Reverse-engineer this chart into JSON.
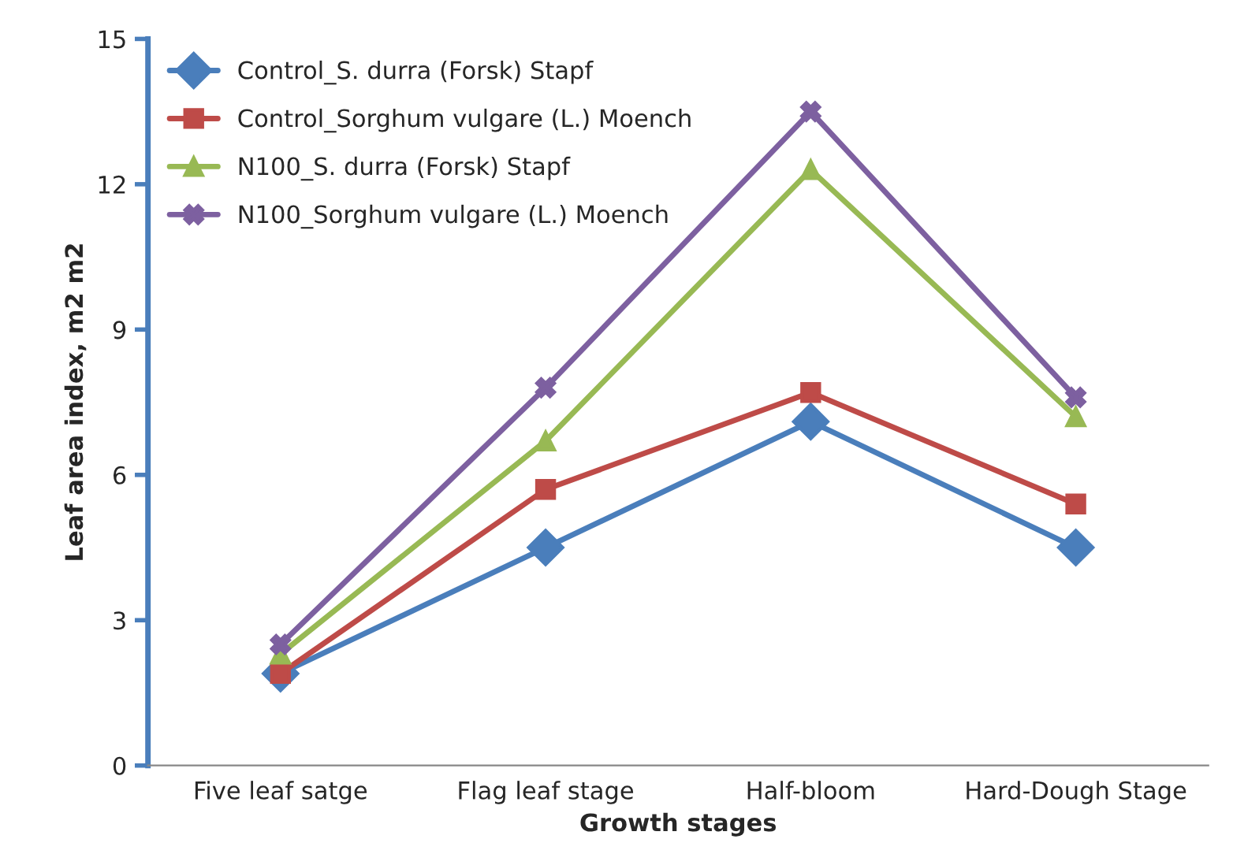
{
  "chart_data": {
    "type": "line",
    "xlabel": "Growth stages",
    "ylabel": "Leaf area index, m2 m2",
    "categories": [
      "Five leaf satge",
      "Flag leaf stage",
      "Half-bloom",
      "Hard-Dough Stage"
    ],
    "series": [
      {
        "name": "Control_S. durra (Forsk) Stapf",
        "color": "#4a7ebb",
        "marker": "diamond",
        "values": [
          1.9,
          4.5,
          7.1,
          4.5
        ]
      },
      {
        "name": "Control_Sorghum vulgare (L.) Moench",
        "color": "#be4b48",
        "marker": "square",
        "values": [
          1.9,
          5.7,
          7.7,
          5.4
        ]
      },
      {
        "name": "N100_S. durra (Forsk) Stapf",
        "color": "#98b954",
        "marker": "triangle",
        "values": [
          2.3,
          6.7,
          12.3,
          7.2
        ]
      },
      {
        "name": "N100_Sorghum vulgare (L.) Moench",
        "color": "#7d60a0",
        "marker": "cross",
        "values": [
          2.5,
          7.8,
          13.5,
          7.6
        ]
      }
    ],
    "ylim": [
      0,
      15
    ],
    "yticks": [
      0,
      3,
      6,
      9,
      12,
      15
    ],
    "grid": false,
    "legend": "top left",
    "line_style": "solid"
  }
}
